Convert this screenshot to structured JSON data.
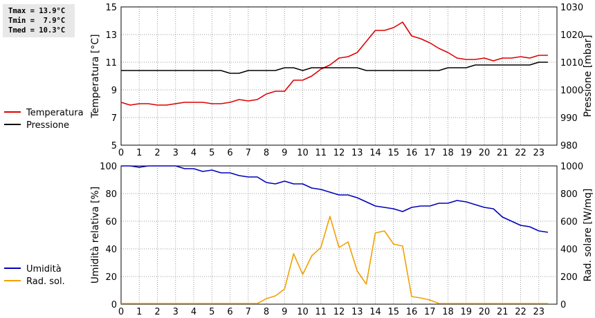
{
  "stats": {
    "tmax": "Tmax = 13.9°C",
    "tmin": "Tmin =  7.9°C",
    "tmed": "Tmed = 10.3°C"
  },
  "colors": {
    "temperatura": "#dd0000",
    "pressione": "#000000",
    "umidita": "#0000bb",
    "radiazione": "#f0a000",
    "grid": "#9a9a9a"
  },
  "chart_data": [
    {
      "type": "line",
      "title": "",
      "xlabel": "",
      "ylabel": "Temperatura [°C]",
      "y2label": "Pressione [mbar]",
      "xlim": [
        0,
        24
      ],
      "ylim": [
        5,
        15
      ],
      "y2lim": [
        980,
        1030
      ],
      "grid": true,
      "legend": "left",
      "xticks": [
        "0",
        "1",
        "2",
        "3",
        "4",
        "5",
        "6",
        "7",
        "8",
        "9",
        "10",
        "11",
        "12",
        "13",
        "14",
        "15",
        "16",
        "17",
        "18",
        "19",
        "20",
        "21",
        "22",
        "23"
      ],
      "yticks": [
        "5",
        "7",
        "9",
        "11",
        "13",
        "15"
      ],
      "y2ticks": [
        "980",
        "990",
        "1000",
        "1010",
        "1020",
        "1030"
      ],
      "series": [
        {
          "name": "Temperatura",
          "axis": "left",
          "x": [
            0,
            0.5,
            1,
            1.5,
            2,
            2.5,
            3,
            3.5,
            4,
            4.5,
            5,
            5.5,
            6,
            6.5,
            7,
            7.5,
            8,
            8.5,
            9,
            9.5,
            10,
            10.5,
            11,
            11.5,
            12,
            12.5,
            13,
            13.5,
            14,
            14.5,
            15,
            15.5,
            16,
            16.5,
            17,
            17.5,
            18,
            18.5,
            19,
            19.5,
            20,
            20.5,
            21,
            21.5,
            22,
            22.5,
            23,
            23.5
          ],
          "y": [
            8.1,
            7.9,
            8.0,
            8.0,
            7.9,
            7.9,
            8.0,
            8.1,
            8.1,
            8.1,
            8.0,
            8.0,
            8.1,
            8.3,
            8.2,
            8.3,
            8.7,
            8.9,
            8.9,
            9.7,
            9.7,
            10.0,
            10.5,
            10.8,
            11.3,
            11.4,
            11.7,
            12.5,
            13.3,
            13.3,
            13.5,
            13.9,
            12.9,
            12.7,
            12.4,
            12.0,
            11.7,
            11.3,
            11.2,
            11.2,
            11.3,
            11.1,
            11.3,
            11.3,
            11.4,
            11.3,
            11.5,
            11.5
          ]
        },
        {
          "name": "Pressione",
          "axis": "right",
          "x": [
            0,
            0.5,
            1,
            1.5,
            2,
            2.5,
            3,
            3.5,
            4,
            4.5,
            5,
            5.5,
            6,
            6.5,
            7,
            7.5,
            8,
            8.5,
            9,
            9.5,
            10,
            10.5,
            11,
            11.5,
            12,
            12.5,
            13,
            13.5,
            14,
            14.5,
            15,
            15.5,
            16,
            16.5,
            17,
            17.5,
            18,
            18.5,
            19,
            19.5,
            20,
            20.5,
            21,
            21.5,
            22,
            22.5,
            23,
            23.5
          ],
          "y": [
            1007,
            1007,
            1007,
            1007,
            1007,
            1007,
            1007,
            1007,
            1007,
            1007,
            1007,
            1007,
            1006,
            1006,
            1007,
            1007,
            1007,
            1007,
            1008,
            1008,
            1007,
            1008,
            1008,
            1008,
            1008,
            1008,
            1008,
            1007,
            1007,
            1007,
            1007,
            1007,
            1007,
            1007,
            1007,
            1007,
            1008,
            1008,
            1008,
            1009,
            1009,
            1009,
            1009,
            1009,
            1009,
            1009,
            1010,
            1010
          ]
        }
      ]
    },
    {
      "type": "line",
      "title": "",
      "xlabel": "",
      "ylabel": "Umidità relativa [%]",
      "y2label": "Rad. solare [W/mq]",
      "xlim": [
        0,
        24
      ],
      "ylim": [
        0,
        100
      ],
      "y2lim": [
        0,
        1000
      ],
      "grid": true,
      "legend": "left",
      "xticks": [
        "0",
        "1",
        "2",
        "3",
        "4",
        "5",
        "6",
        "7",
        "8",
        "9",
        "10",
        "11",
        "12",
        "13",
        "14",
        "15",
        "16",
        "17",
        "18",
        "19",
        "20",
        "21",
        "22",
        "23"
      ],
      "yticks": [
        "0",
        "20",
        "40",
        "60",
        "80",
        "100"
      ],
      "y2ticks": [
        "0",
        "200",
        "400",
        "600",
        "800",
        "1000"
      ],
      "series": [
        {
          "name": "Umidità",
          "axis": "left",
          "x": [
            0,
            0.5,
            1,
            1.5,
            2,
            2.5,
            3,
            3.5,
            4,
            4.5,
            5,
            5.5,
            6,
            6.5,
            7,
            7.5,
            8,
            8.5,
            9,
            9.5,
            10,
            10.5,
            11,
            11.5,
            12,
            12.5,
            13,
            13.5,
            14,
            14.5,
            15,
            15.5,
            16,
            16.5,
            17,
            17.5,
            18,
            18.5,
            19,
            19.5,
            20,
            20.5,
            21,
            21.5,
            22,
            22.5,
            23,
            23.5
          ],
          "y": [
            100,
            100,
            99,
            100,
            100,
            100,
            100,
            98,
            98,
            96,
            97,
            95,
            95,
            93,
            92,
            92,
            88,
            87,
            89,
            87,
            87,
            84,
            83,
            81,
            79,
            79,
            77,
            74,
            71,
            70,
            69,
            67,
            70,
            71,
            71,
            73,
            73,
            75,
            74,
            72,
            70,
            69,
            63,
            60,
            57,
            56,
            53,
            52
          ]
        },
        {
          "name": "Rad. sol.",
          "axis": "right",
          "x": [
            0,
            0.5,
            1,
            1.5,
            2,
            2.5,
            3,
            3.5,
            4,
            4.5,
            5,
            5.5,
            6,
            6.5,
            7,
            7.5,
            8,
            8.5,
            9,
            9.5,
            10,
            10.5,
            11,
            11.5,
            12,
            12.5,
            13,
            13.5,
            14,
            14.5,
            15,
            15.5,
            16,
            16.5,
            17,
            17.5,
            18,
            18.5,
            19,
            19.5,
            20,
            20.5,
            21,
            21.5,
            22,
            22.5,
            23,
            23.5
          ],
          "y": [
            5,
            5,
            5,
            5,
            5,
            5,
            5,
            5,
            5,
            5,
            5,
            5,
            5,
            5,
            5,
            5,
            40,
            60,
            110,
            365,
            215,
            350,
            410,
            635,
            410,
            450,
            240,
            145,
            515,
            530,
            435,
            420,
            55,
            45,
            30,
            5,
            5,
            5,
            5,
            5,
            5,
            5,
            5,
            5,
            5,
            5,
            5,
            5
          ]
        }
      ]
    }
  ]
}
